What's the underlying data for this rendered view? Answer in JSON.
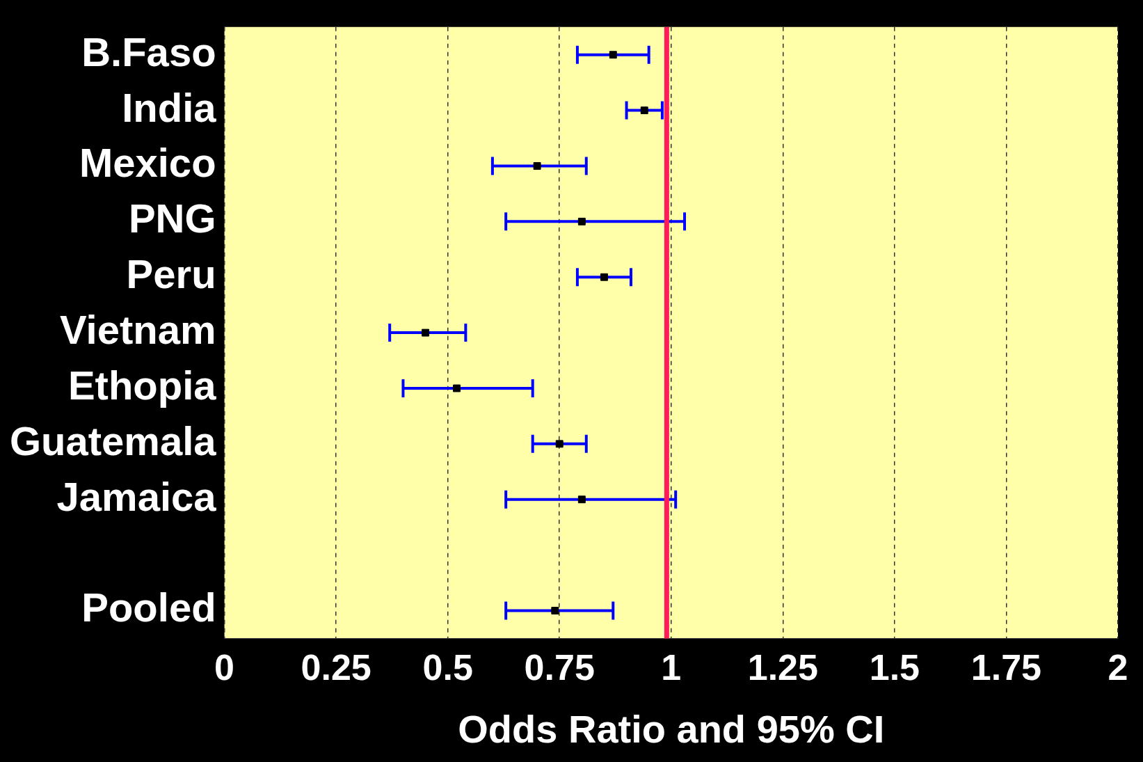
{
  "chart_data": {
    "type": "scatter",
    "orientation": "horizontal",
    "xlabel": "Odds Ratio and 95% CI",
    "categories": [
      "B.Faso",
      "India",
      "Mexico",
      "PNG",
      "Peru",
      "Vietnam",
      "Ethopia",
      "Guatemala",
      "Jamaica",
      null,
      "Pooled"
    ],
    "series": [
      {
        "color": "#000000",
        "values": [
          0.87,
          0.94,
          0.7,
          0.8,
          0.85,
          0.45,
          0.52,
          0.75,
          0.8,
          null,
          0.74
        ],
        "errors": [
          [
            0.79,
            0.95
          ],
          [
            0.9,
            0.98
          ],
          [
            0.6,
            0.81
          ],
          [
            0.63,
            1.03
          ],
          [
            0.79,
            0.91
          ],
          [
            0.37,
            0.54
          ],
          [
            0.4,
            0.69
          ],
          [
            0.69,
            0.81
          ],
          [
            0.63,
            1.01
          ],
          null,
          [
            0.63,
            0.87
          ]
        ]
      }
    ],
    "xlim": [
      0,
      2
    ],
    "xticks": [
      0,
      0.25,
      0.5,
      0.75,
      1,
      1.25,
      1.5,
      1.75,
      2
    ],
    "grid": "x",
    "legend": false,
    "ref_lines": [
      {
        "axis": "x",
        "value": 0.99,
        "color": "#ff1a5a"
      }
    ]
  }
}
